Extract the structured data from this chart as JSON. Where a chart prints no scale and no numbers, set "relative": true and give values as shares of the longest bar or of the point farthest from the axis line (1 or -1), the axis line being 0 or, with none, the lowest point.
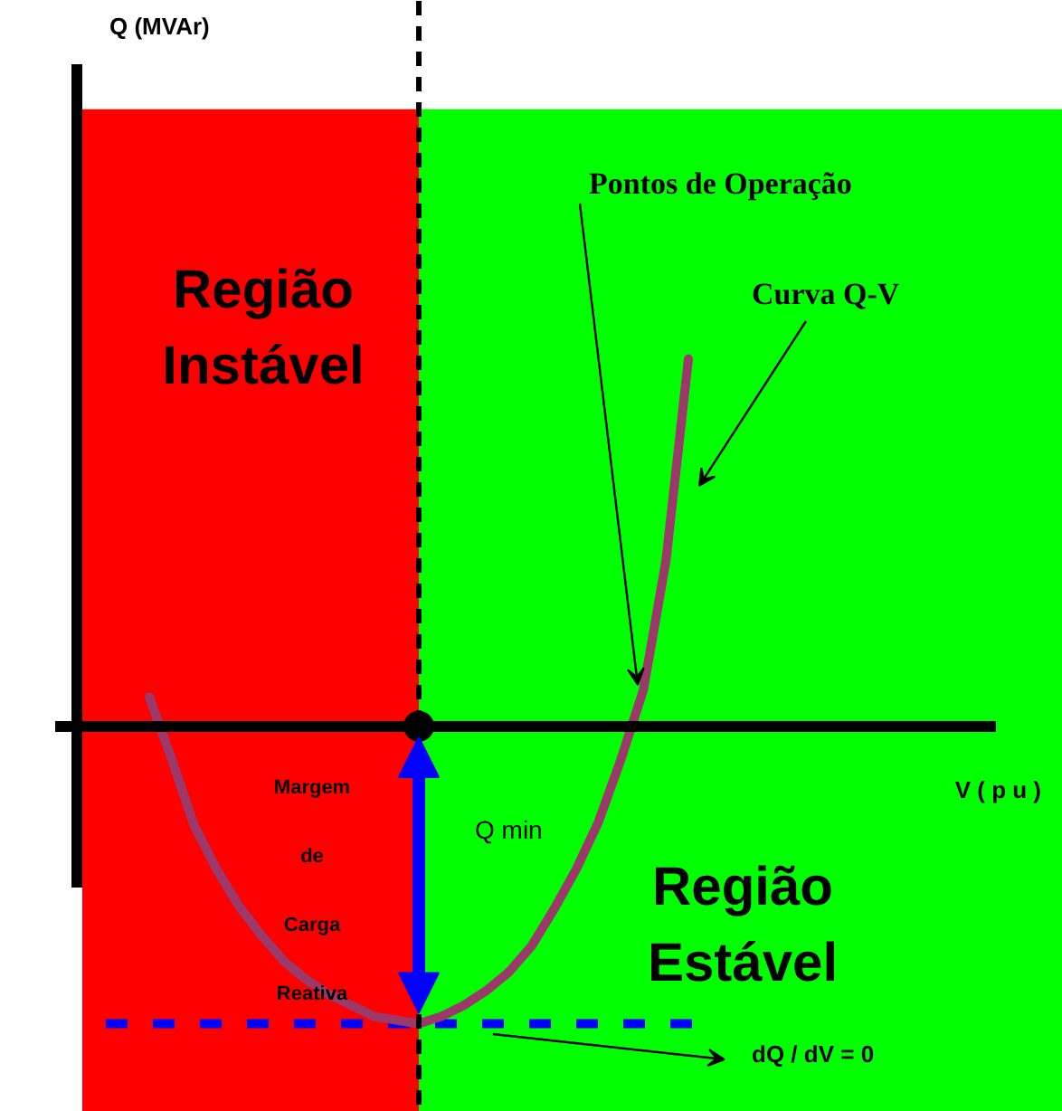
{
  "chart_data": {
    "type": "line",
    "relative": true,
    "categories": [
      null,
      null,
      null,
      null,
      null,
      null,
      null,
      null,
      null,
      null,
      null,
      null,
      null,
      null,
      null,
      null,
      null,
      null,
      null,
      null,
      null,
      null,
      null,
      null,
      null
    ],
    "series": [
      {
        "color": "#9b3a6a",
        "values": [
          0.08,
          -0.09,
          -0.27,
          -0.39,
          -0.49,
          -0.57,
          -0.64,
          -0.69,
          -0.73,
          -0.76,
          -0.79,
          -0.8,
          -0.81,
          -0.79,
          -0.76,
          -0.72,
          -0.67,
          -0.6,
          -0.5,
          -0.39,
          -0.26,
          -0.09,
          0.1,
          0.45,
          1.0
        ]
      }
    ],
    "ref_lines": [
      {
        "axis": "y",
        "value": -0.81,
        "color": "#0000ff",
        "line_style": "dashed"
      }
    ],
    "annotations": [
      "Pontos de Operação",
      "Curva Q-V",
      "Margem de Carga Reativa",
      "Q min",
      "Região Instável",
      "Região Estável",
      "dQ / dV = 0",
      "Q (MVAr)",
      "V ( p u )"
    ],
    "grid": false
  }
}
